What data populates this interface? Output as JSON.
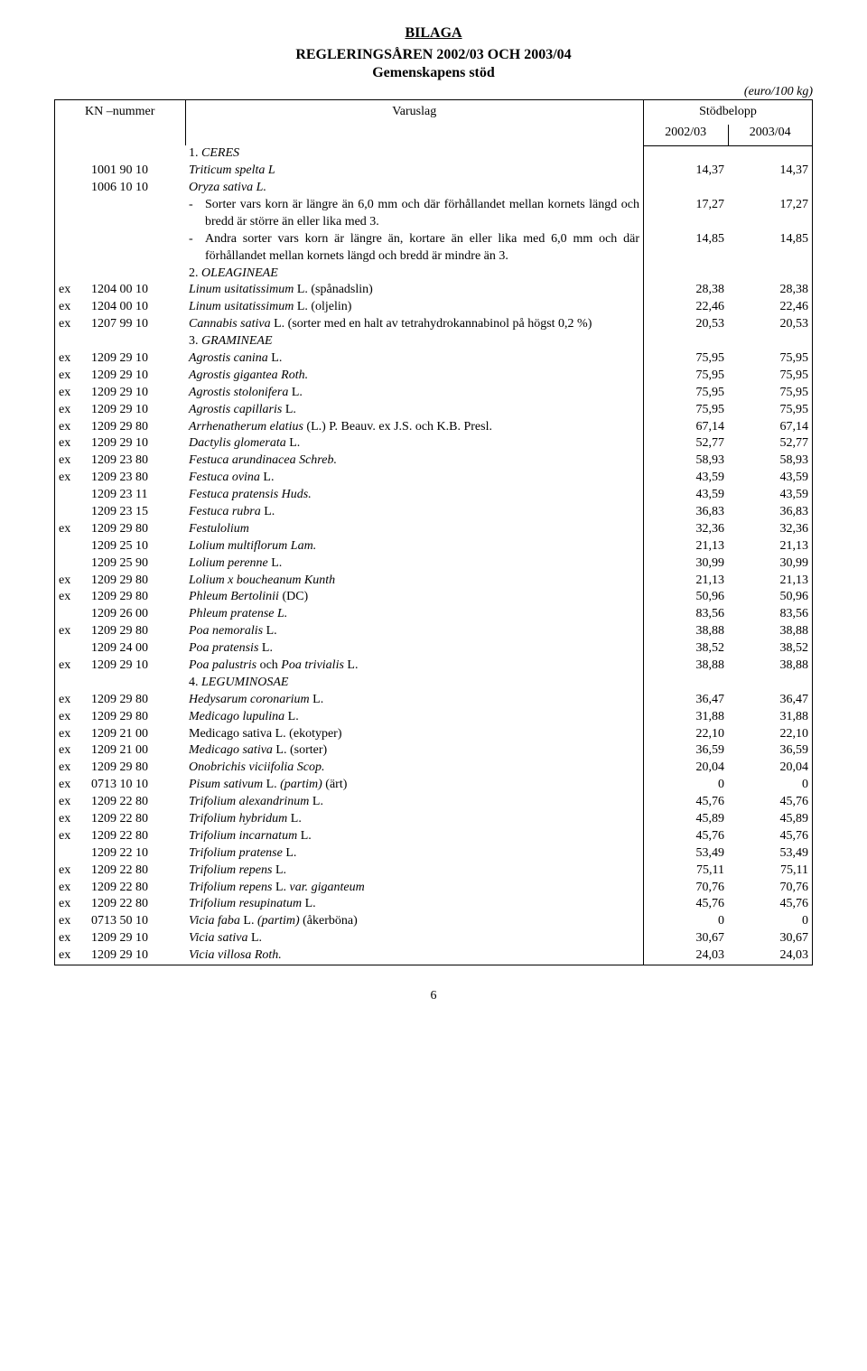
{
  "title1": "BILAGA",
  "title2": "REGLERINGSÅREN 2002/03 OCH 2003/04",
  "title3": "Gemenskapens stöd",
  "unit_line": "(euro/100 kg)",
  "header": {
    "kn": "KN –nummer",
    "varuslag": "Varuslag",
    "stod": "Stödbelopp",
    "y1": "2002/03",
    "y2": "2003/04"
  },
  "page_number": "6",
  "sections": {
    "s1": "1. CERES",
    "s2": "2. OLEAGINEAE",
    "s3": "3. GRAMINEAE",
    "s4": "4. LEGUMINOSAE"
  },
  "rows": [
    {
      "ex": "",
      "code": "1001 90 10",
      "desc": "Triticum spelta L",
      "it": true,
      "v1": "14,37",
      "v2": "14,37"
    },
    {
      "ex": "",
      "code": "1006 10 10",
      "desc": "Oryza sativa L.",
      "it": true,
      "v1": "",
      "v2": ""
    },
    {
      "ex": "",
      "code": "",
      "bullet": "Sorter vars korn är längre än 6,0 mm och där förhållandet mellan kornets längd och bredd är större än eller lika med 3.",
      "v1": "17,27",
      "v2": "17,27"
    },
    {
      "ex": "",
      "code": "",
      "bullet": "Andra sorter vars korn är längre än, kortare än eller lika med 6,0 mm och där förhållandet mellan kornets längd och bredd är mindre än 3.",
      "v1": "14,85",
      "v2": "14,85"
    },
    {
      "ex": "ex",
      "code": "1204 00 10",
      "desc_begin_it": "Linum usitatissimum",
      "desc_rest": " L. (spånadslin)",
      "v1": "28,38",
      "v2": "28,38"
    },
    {
      "ex": "ex",
      "code": "1204 00 10",
      "desc_begin_it": "Linum usitatissimum",
      "desc_rest": " L. (oljelin)",
      "v1": "22,46",
      "v2": "22,46"
    },
    {
      "ex": "ex",
      "code": "1207 99 10",
      "desc_begin_it": "Cannabis sativa",
      "desc_rest": " L. (sorter med en halt av tetrahydrokannabinol på högst 0,2 %)",
      "v1": "20,53",
      "v2": "20,53"
    },
    {
      "ex": "ex",
      "code": "1209 29 10",
      "desc_begin_it": "Agrostis canina",
      "desc_rest": " L.",
      "v1": "75,95",
      "v2": "75,95"
    },
    {
      "ex": "ex",
      "code": "1209 29 10",
      "desc_begin_it": "Agrostis gigantea Roth.",
      "desc_rest": "",
      "v1": "75,95",
      "v2": "75,95"
    },
    {
      "ex": "ex",
      "code": "1209 29 10",
      "desc_begin_it": "Agrostis stolonifera",
      "desc_rest": " L.",
      "v1": "75,95",
      "v2": "75,95"
    },
    {
      "ex": "ex",
      "code": "1209 29 10",
      "desc_begin_it": "Agrostis capillaris",
      "desc_rest": " L.",
      "v1": "75,95",
      "v2": "75,95"
    },
    {
      "ex": "ex",
      "code": "1209 29 80",
      "desc_begin_it": "Arrhenatherum elatius",
      "desc_rest": " (L.) P. Beauv. ex J.S. och K.B. Presl.",
      "v1": "67,14",
      "v2": "67,14"
    },
    {
      "ex": "ex",
      "code": "1209 29 10",
      "desc_begin_it": "Dactylis glomerata",
      "desc_rest": " L.",
      "v1": "52,77",
      "v2": "52,77"
    },
    {
      "ex": "ex",
      "code": "1209 23 80",
      "desc_begin_it": "Festuca arundinacea Schreb.",
      "desc_rest": "",
      "v1": "58,93",
      "v2": "58,93"
    },
    {
      "ex": "ex",
      "code": "1209 23 80",
      "desc_begin_it": "Festuca ovina",
      "desc_rest": " L.",
      "v1": "43,59",
      "v2": "43,59"
    },
    {
      "ex": "",
      "code": "1209 23 11",
      "desc_begin_it": "Festuca pratensis Huds.",
      "desc_rest": "",
      "v1": "43,59",
      "v2": "43,59"
    },
    {
      "ex": "",
      "code": "1209 23 15",
      "desc_begin_it": "Festuca rubra",
      "desc_rest": " L.",
      "v1": "36,83",
      "v2": "36,83"
    },
    {
      "ex": "ex",
      "code": "1209 29 80",
      "desc_begin_it": "Festulolium",
      "desc_rest": "",
      "v1": "32,36",
      "v2": "32,36"
    },
    {
      "ex": "",
      "code": "1209 25 10",
      "desc_begin_it": "Lolium multiflorum Lam.",
      "desc_rest": "",
      "v1": "21,13",
      "v2": "21,13"
    },
    {
      "ex": "",
      "code": "1209 25 90",
      "desc_begin_it": "Lolium perenne",
      "desc_rest": " L.",
      "v1": "30,99",
      "v2": "30,99"
    },
    {
      "ex": "ex",
      "code": "1209 29 80",
      "desc_begin_it": "Lolium x boucheanum Kunth",
      "desc_rest": "",
      "v1": "21,13",
      "v2": "21,13"
    },
    {
      "ex": "ex",
      "code": "1209 29 80",
      "desc_begin_it": "Phleum Bertolinii",
      "desc_rest": " (DC)",
      "v1": "50,96",
      "v2": "50,96"
    },
    {
      "ex": "",
      "code": "1209 26 00",
      "desc_begin_it": "Phleum pratense L.",
      "desc_rest": "",
      "v1": "83,56",
      "v2": "83,56"
    },
    {
      "ex": "ex",
      "code": "1209 29 80",
      "desc_begin_it": "Poa nemoralis",
      "desc_rest": " L.",
      "v1": "38,88",
      "v2": "38,88"
    },
    {
      "ex": "",
      "code": "1209 24 00",
      "desc_begin_it": "Poa pratensis",
      "desc_rest": " L.",
      "v1": "38,52",
      "v2": "38,52"
    },
    {
      "ex": "ex",
      "code": "1209 29 10",
      "desc_begin_it": "Poa palustris",
      "desc_rest_mixed": [
        " och ",
        "Poa trivialis",
        " L."
      ],
      "v1": "38,88",
      "v2": "38,88"
    },
    {
      "ex": "ex",
      "code": "1209 29 80",
      "desc_begin_it": "Hedysarum coronarium",
      "desc_rest": " L.",
      "v1": "36,47",
      "v2": "36,47"
    },
    {
      "ex": "ex",
      "code": "1209 29 80",
      "desc_begin_it": "Medicago lupulina",
      "desc_rest": " L.",
      "v1": "31,88",
      "v2": "31,88"
    },
    {
      "ex": "ex",
      "code": "1209 21 00",
      "desc_begin_it": "",
      "desc_rest": "Medicago sativa L. (ekotyper)",
      "v1": "22,10",
      "v2": "22,10"
    },
    {
      "ex": "ex",
      "code": "1209 21 00",
      "desc_begin_it": "Medicago sativa",
      "desc_rest": " L. (sorter)",
      "v1": "36,59",
      "v2": "36,59"
    },
    {
      "ex": "ex",
      "code": "1209 29 80",
      "desc_begin_it": "Onobrichis viciifolia Scop.",
      "desc_rest": "",
      "v1": "20,04",
      "v2": "20,04"
    },
    {
      "ex": "ex",
      "code": "0713 10 10",
      "desc_begin_it": "Pisum sativum",
      "desc_rest": " L. ",
      "desc_trail_it": "(partim)",
      "desc_tail": " (ärt)",
      "v1": "0",
      "v2": "0"
    },
    {
      "ex": "ex",
      "code": "1209 22 80",
      "desc_begin_it": "Trifolium alexandrinum",
      "desc_rest": " L.",
      "v1": "45,76",
      "v2": "45,76"
    },
    {
      "ex": "ex",
      "code": "1209 22 80",
      "desc_begin_it": "Trifolium hybridum",
      "desc_rest": " L.",
      "v1": "45,89",
      "v2": "45,89"
    },
    {
      "ex": "ex",
      "code": "1209 22 80",
      "desc_begin_it": "Trifolium incarnatum",
      "desc_rest": " L.",
      "v1": "45,76",
      "v2": "45,76"
    },
    {
      "ex": "",
      "code": "1209 22 10",
      "desc_begin_it": "Trifolium pratense",
      "desc_rest": " L.",
      "v1": "53,49",
      "v2": "53,49"
    },
    {
      "ex": "ex",
      "code": "1209 22 80",
      "desc_begin_it": "Trifolium repens",
      "desc_rest": " L.",
      "v1": "75,11",
      "v2": "75,11"
    },
    {
      "ex": "ex",
      "code": "1209 22 80",
      "desc_begin_it": "Trifolium repens",
      "desc_rest": " L. ",
      "desc_trail_it": "var. giganteum",
      "v1": "70,76",
      "v2": "70,76"
    },
    {
      "ex": "ex",
      "code": "1209 22 80",
      "desc_begin_it": "Trifolium resupinatum",
      "desc_rest": " L.",
      "v1": "45,76",
      "v2": "45,76"
    },
    {
      "ex": "ex",
      "code": "0713 50 10",
      "desc_begin_it": "Vicia faba",
      "desc_rest": " L. ",
      "desc_trail_it": "(partim)",
      "desc_tail": " (åkerböna)",
      "v1": "0",
      "v2": "0"
    },
    {
      "ex": "ex",
      "code": "1209 29 10",
      "desc_begin_it": "Vicia sativa",
      "desc_rest": " L.",
      "v1": "30,67",
      "v2": "30,67"
    },
    {
      "ex": "ex",
      "code": "1209 29 10",
      "desc_begin_it": "Vicia villosa Roth.",
      "desc_rest": "",
      "v1": "24,03",
      "v2": "24,03"
    }
  ]
}
